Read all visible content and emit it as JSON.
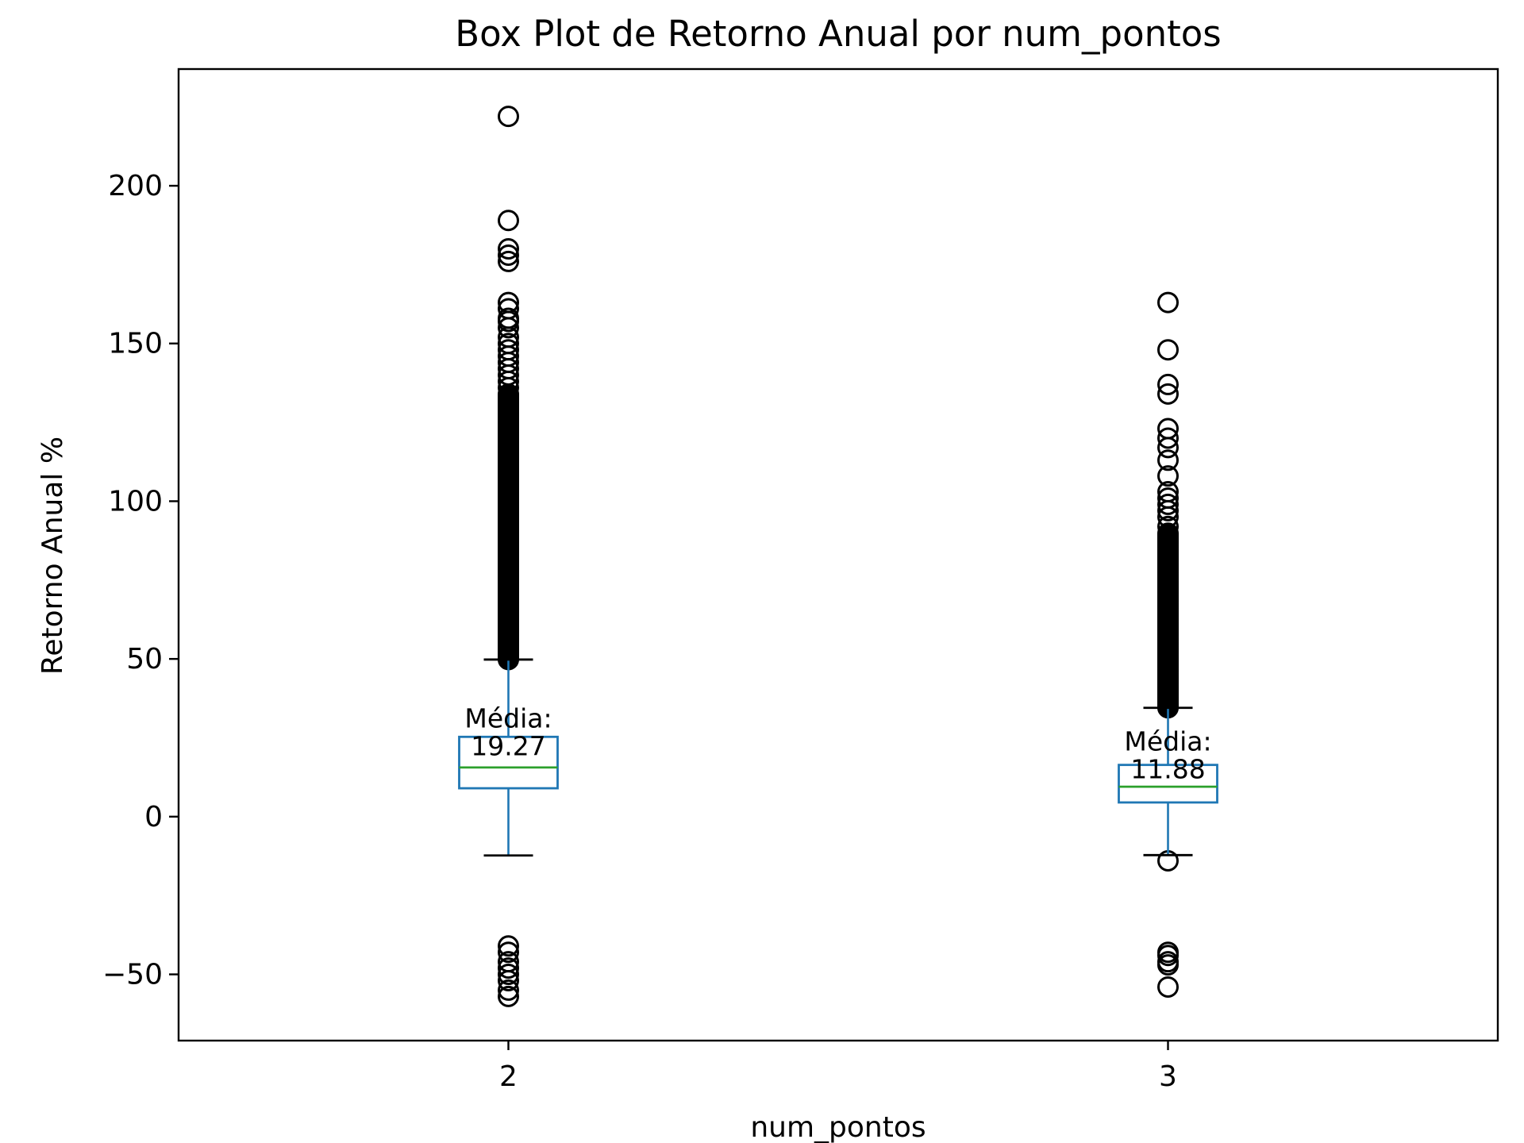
{
  "chart_data": {
    "type": "box",
    "title": "Box Plot de Retorno Anual por num_pontos",
    "xlabel": "num_pontos",
    "ylabel": "Retorno Anual %",
    "ylim": [
      -71,
      237
    ],
    "yticks": [
      -50,
      0,
      50,
      100,
      150,
      200
    ],
    "ytick_labels": [
      "−50",
      "0",
      "50",
      "100",
      "150",
      "200"
    ],
    "categories": [
      "2",
      "3"
    ],
    "grid": false,
    "legend": "none",
    "colors": {
      "box": "#1f77b4",
      "median": "#2ca02c",
      "whisker": "#1f77b4",
      "cap": "#000000",
      "flier": "#000000"
    },
    "mean_label_prefix": "Média:",
    "boxes": [
      {
        "category": "2",
        "q1": 9,
        "median": 15.6,
        "q3": 25.3,
        "whisker_low": -12.3,
        "whisker_high": 49.8,
        "mean": 19.27,
        "mean_text": "19.27",
        "flier_range_high": [
          49.8,
          134
        ],
        "fliers_high": [
          136,
          138,
          140,
          142,
          144,
          146,
          148,
          150,
          152,
          155,
          157,
          158,
          161,
          163,
          176,
          178,
          180,
          189,
          222
        ],
        "fliers_low": [
          -41,
          -43,
          -46,
          -48,
          -50,
          -52,
          -55,
          -57
        ]
      },
      {
        "category": "3",
        "q1": 4.5,
        "median": 9.5,
        "q3": 16.4,
        "whisker_low": -12.2,
        "whisker_high": 34.5,
        "mean": 11.88,
        "mean_text": "11.88",
        "flier_range_high": [
          34.5,
          90
        ],
        "fliers_high": [
          92,
          95,
          97,
          99,
          101,
          103,
          108,
          113,
          117,
          120,
          123,
          134,
          137,
          148,
          163
        ],
        "fliers_low": [
          -14,
          -43,
          -44,
          -46,
          -47,
          -54
        ]
      }
    ]
  }
}
